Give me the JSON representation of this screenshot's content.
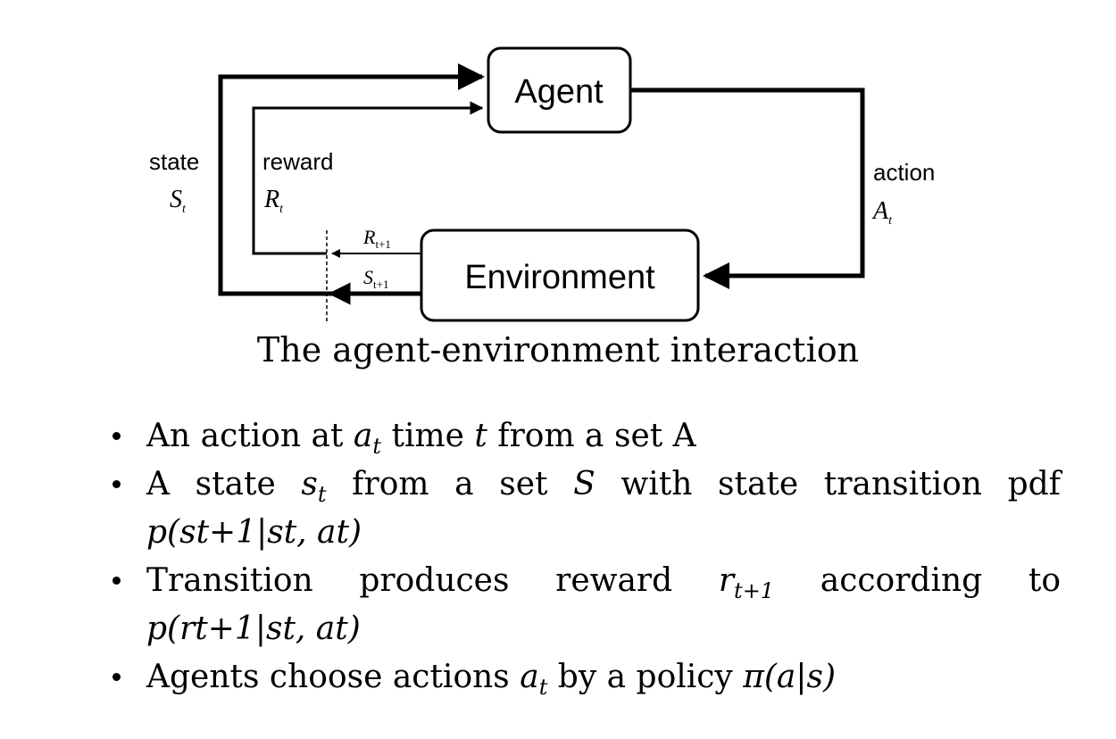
{
  "diagram": {
    "nodes": {
      "agent": "Agent",
      "environment": "Environment"
    },
    "labels": {
      "state_word": "state",
      "state_sym": "S",
      "state_sub": "t",
      "reward_word": "reward",
      "reward_sym": "R",
      "reward_sub": "t",
      "action_word": "action",
      "action_sym": "A",
      "action_sub": "t",
      "next_reward_sym": "R",
      "next_reward_sub": "t+1",
      "next_state_sym": "S",
      "next_state_sub": "t+1"
    },
    "caption": "The agent-environment interaction"
  },
  "bullets": [
    {
      "parts": [
        "An action at ",
        "a",
        "t",
        " time ",
        "t",
        " from a set A"
      ]
    },
    {
      "parts": [
        "A state ",
        "s",
        "t",
        " from a set ",
        "S",
        " with state transition pdf"
      ],
      "continuation": "p(st+1|st, at)"
    },
    {
      "parts": [
        "Transition produces reward ",
        "r",
        "t+1",
        " according to"
      ],
      "continuation": "p(rt+1|st, at)"
    },
    {
      "parts": [
        "Agents choose actions ",
        "a",
        "t",
        " by a policy ",
        "π(a|s)"
      ]
    }
  ]
}
